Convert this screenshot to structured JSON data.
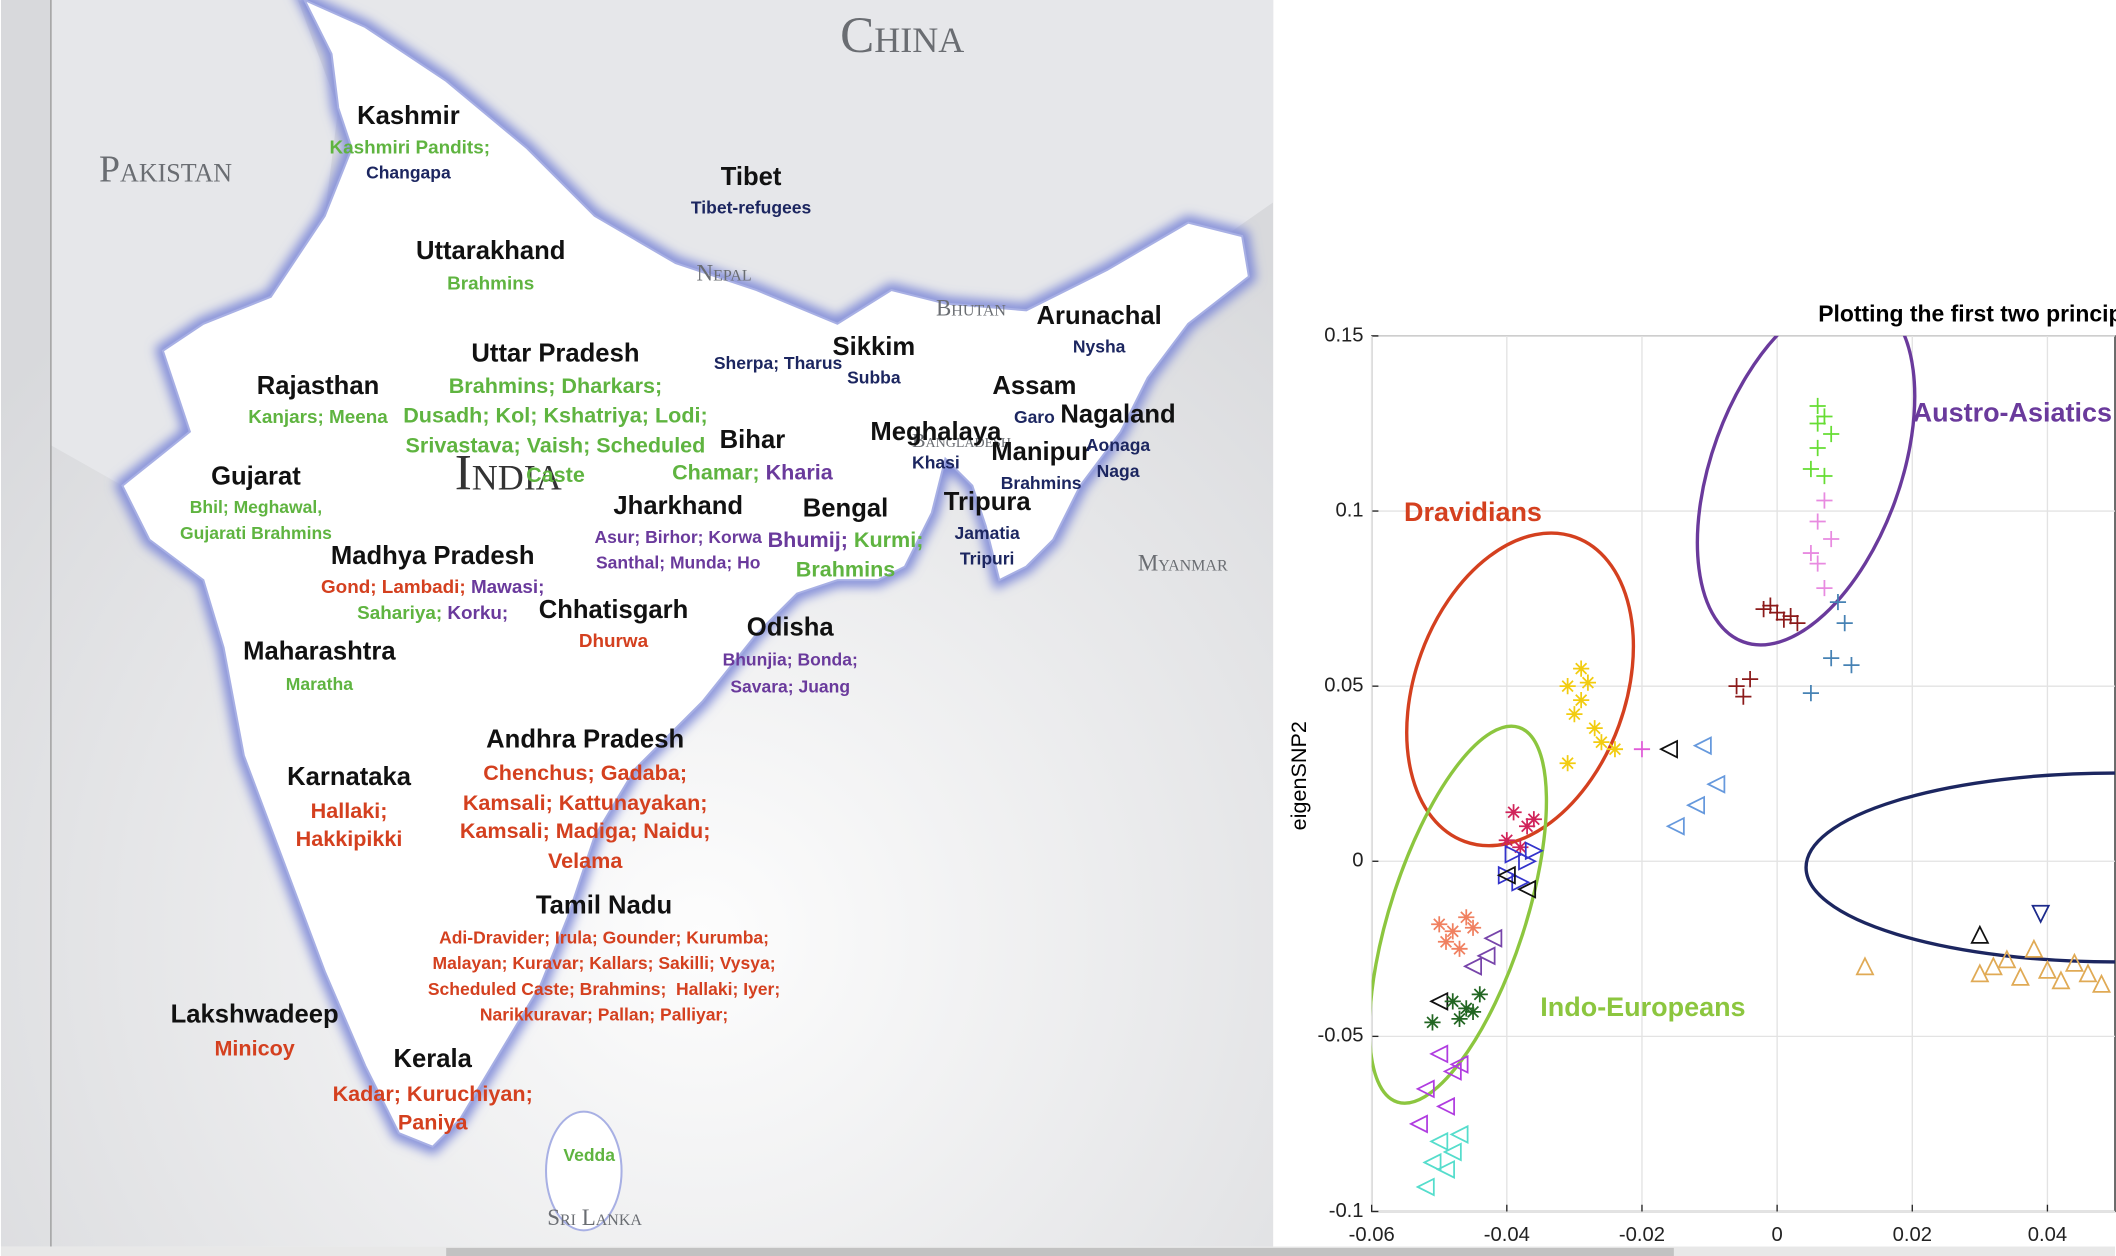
{
  "map": {
    "countries": [
      "Pakistan",
      "China",
      "Nepal",
      "Bhutan",
      "Myanmar",
      "India",
      "Bangladesh",
      "Sri Lanka"
    ],
    "regions": [
      "Kashmir",
      "Tibet",
      "Uttarakhand",
      "Uttar Pradesh",
      "Rajasthan",
      "Sikkim",
      "Arunachal",
      "Assam",
      "Nagaland",
      "Meghalaya",
      "Manipur",
      "Bihar",
      "Gujarat",
      "Jharkhand",
      "Bengal",
      "Tripura",
      "Madhya Pradesh",
      "Chhatisgarh",
      "Odisha",
      "Maharashtra",
      "Andhra Pradesh",
      "Karnataka",
      "Tamil Nadu",
      "Lakshwadeep",
      "Kerala"
    ],
    "groups": [
      {
        "text": "Kashmiri Pandits;",
        "color": "#5fb440"
      },
      {
        "text": "Changapa",
        "color": "#1c2660"
      },
      {
        "text": "Tibet-refugees",
        "color": "#1c2660"
      },
      {
        "text": "Brahmins",
        "color": "#5fb440"
      },
      {
        "text": "Brahmins; Dharkars;",
        "color": "#5fb440"
      },
      {
        "text": "Dusadh; Kol; Kshatriya; Lodi;",
        "color": "#5fb440"
      },
      {
        "text": "Srivastava; Vaish; Scheduled",
        "color": "#5fb440"
      },
      {
        "text": "Caste",
        "color": "#5fb440"
      },
      {
        "text": "Kanjars; Meena",
        "color": "#5fb440"
      },
      {
        "text": "Sherpa; Tharus",
        "color": "#1c2660"
      },
      {
        "text": "Subba",
        "color": "#1c2660"
      },
      {
        "text": "Nysha",
        "color": "#1c2660"
      },
      {
        "text": "Garo",
        "color": "#1c2660"
      },
      {
        "text": "Aonaga",
        "color": "#1c2660"
      },
      {
        "text": "Naga",
        "color": "#1c2660"
      },
      {
        "text": "Khasi",
        "color": "#1c2660"
      },
      {
        "text": "Brahmins",
        "color": "#1c2660"
      },
      {
        "parts": [
          {
            "text": "Chamar; ",
            "color": "#5fb440"
          },
          {
            "text": "Kharia",
            "color": "#6a3a9c"
          }
        ]
      },
      {
        "text": "Bhil; Meghawal,",
        "color": "#5fb440"
      },
      {
        "text": "Gujarati Brahmins",
        "color": "#5fb440"
      },
      {
        "text": "Asur; Birhor; Korwa",
        "color": "#6a3a9c"
      },
      {
        "text": "Santhal; Munda; Ho",
        "color": "#6a3a9c"
      },
      {
        "parts": [
          {
            "text": "Bhumij; ",
            "color": "#6a3a9c"
          },
          {
            "text": "Kurmi;",
            "color": "#5fb440"
          }
        ]
      },
      {
        "text": "Brahmins",
        "color": "#5fb440"
      },
      {
        "text": "Jamatia",
        "color": "#1c2660"
      },
      {
        "text": "Tripuri",
        "color": "#1c2660"
      },
      {
        "parts": [
          {
            "text": "Gond; Lambadi; ",
            "color": "#d4401f"
          },
          {
            "text": "Mawasi;",
            "color": "#6a3a9c"
          }
        ]
      },
      {
        "parts": [
          {
            "text": "Sahariya; ",
            "color": "#5fb440"
          },
          {
            "text": "Korku;",
            "color": "#6a3a9c"
          }
        ]
      },
      {
        "text": "Dhurwa",
        "color": "#d4401f"
      },
      {
        "text": "Bhunjia; Bonda;",
        "color": "#6a3a9c"
      },
      {
        "text": "Savara; Juang",
        "color": "#6a3a9c"
      },
      {
        "text": "Maratha",
        "color": "#5fb440"
      },
      {
        "text": "Chenchus; Gadaba;",
        "color": "#d4401f"
      },
      {
        "text": "Kamsali; Kattunayakan;",
        "color": "#d4401f"
      },
      {
        "text": "Kamsali; Madiga; Naidu;",
        "color": "#d4401f"
      },
      {
        "text": "Velama",
        "color": "#d4401f"
      },
      {
        "text": "Hallaki;",
        "color": "#d4401f"
      },
      {
        "text": "Hakkipikki",
        "color": "#d4401f"
      },
      {
        "text": "Adi-Dravider; Irula; Gounder; Kurumba;",
        "color": "#d4401f"
      },
      {
        "text": "Malayan; Kuravar; Kallars; Sakilli; Vysya;",
        "color": "#d4401f"
      },
      {
        "text": "Scheduled Caste; Brahmins;  Hallaki; Iyer;",
        "color": "#d4401f"
      },
      {
        "text": "Narikkuravar; Pallan; Palliyar;",
        "color": "#d4401f"
      },
      {
        "text": "Minicoy",
        "color": "#d4401f"
      },
      {
        "text": "Kadar; Kuruchiyan;",
        "color": "#d4401f"
      },
      {
        "text": "Paniya",
        "color": "#d4401f"
      },
      {
        "text": "Vedda",
        "color": "#5fb440"
      }
    ]
  },
  "chart_data": {
    "type": "scatter",
    "title": "Plotting the first two princip",
    "y_label": "eigenSNP2",
    "annotations": [
      {
        "text": "Dravidians",
        "color": "#d4401f"
      },
      {
        "text": "Austro-Asiatics",
        "color": "#6a3a9c"
      },
      {
        "text": "Indo-Europeans",
        "color": "#8cc63f"
      }
    ],
    "xlim": [
      -0.06,
      0.05
    ],
    "ylim": [
      -0.1,
      0.15
    ],
    "xticks": [
      -0.06,
      -0.04,
      -0.02,
      0,
      0.02,
      0.04
    ],
    "yticks": [
      -0.1,
      -0.05,
      0,
      0.05,
      0.1,
      0.15
    ],
    "grid": true,
    "series": [
      {
        "color": "#f2cc10",
        "marker": "*",
        "x": [
          -0.031,
          -0.029,
          -0.028,
          -0.03,
          -0.027,
          -0.026,
          -0.031,
          -0.024,
          -0.029
        ],
        "values": [
          0.05,
          0.046,
          0.051,
          0.042,
          0.038,
          0.034,
          0.028,
          0.032,
          0.055
        ]
      },
      {
        "color": "#66dd33",
        "marker": "+",
        "x": [
          0.006,
          0.007,
          0.008,
          0.006,
          0.005,
          0.007,
          0.006
        ],
        "values": [
          0.13,
          0.127,
          0.122,
          0.118,
          0.112,
          0.11,
          0.125
        ]
      },
      {
        "color": "#e88ae0",
        "marker": "+",
        "x": [
          0.007,
          0.006,
          0.008,
          0.005,
          0.006,
          0.007
        ],
        "values": [
          0.103,
          0.097,
          0.092,
          0.088,
          0.085,
          0.078
        ]
      },
      {
        "color": "#8b1a1a",
        "marker": "+",
        "x": [
          -0.001,
          0,
          0.001,
          -0.002,
          0.002,
          0.003,
          -0.006,
          -0.005,
          -0.004
        ],
        "values": [
          0.073,
          0.071,
          0.069,
          0.072,
          0.07,
          0.068,
          0.05,
          0.047,
          0.052
        ]
      },
      {
        "color": "#4682b4",
        "marker": "+",
        "x": [
          0.009,
          0.01,
          0.008,
          0.011,
          0.005
        ],
        "values": [
          0.074,
          0.068,
          0.058,
          0.056,
          0.048
        ]
      },
      {
        "color": "#e05cd8",
        "marker": "+",
        "x": [
          -0.02
        ],
        "values": [
          0.032
        ]
      },
      {
        "color": "#d0245a",
        "marker": "*",
        "x": [
          -0.039,
          -0.037,
          -0.04,
          -0.038,
          -0.036
        ],
        "values": [
          0.014,
          0.01,
          0.006,
          0.004,
          0.012
        ]
      },
      {
        "color": "#f08060",
        "marker": "*",
        "x": [
          -0.05,
          -0.048,
          -0.046,
          -0.049,
          -0.045,
          -0.047
        ],
        "values": [
          -0.018,
          -0.02,
          -0.016,
          -0.023,
          -0.019,
          -0.025
        ]
      },
      {
        "color": "#3333cc",
        "marker": ">",
        "x": [
          -0.039,
          -0.037,
          -0.04,
          -0.036,
          -0.038
        ],
        "values": [
          0.002,
          0.0,
          -0.004,
          0.003,
          -0.006
        ]
      },
      {
        "color": "#111111",
        "marker": "<",
        "x": [
          -0.04,
          -0.037,
          -0.05,
          -0.016
        ],
        "values": [
          -0.004,
          -0.008,
          -0.04,
          0.032
        ]
      },
      {
        "color": "#7744aa",
        "marker": "<",
        "x": [
          -0.043,
          -0.045,
          -0.042
        ],
        "values": [
          -0.027,
          -0.03,
          -0.022
        ]
      },
      {
        "color": "#226622",
        "marker": "*",
        "x": [
          -0.048,
          -0.046,
          -0.044,
          -0.047,
          -0.045,
          -0.051
        ],
        "values": [
          -0.04,
          -0.042,
          -0.038,
          -0.045,
          -0.043,
          -0.046
        ]
      },
      {
        "color": "#b03ce0",
        "marker": "<",
        "x": [
          -0.05,
          -0.048,
          -0.052,
          -0.049,
          -0.047,
          -0.053
        ],
        "values": [
          -0.055,
          -0.06,
          -0.065,
          -0.07,
          -0.058,
          -0.075
        ]
      },
      {
        "color": "#55ddcc",
        "marker": "<",
        "x": [
          -0.05,
          -0.048,
          -0.051,
          -0.049,
          -0.052,
          -0.047
        ],
        "values": [
          -0.08,
          -0.083,
          -0.086,
          -0.088,
          -0.093,
          -0.078
        ]
      },
      {
        "color": "#6699dd",
        "marker": "<",
        "x": [
          -0.011,
          -0.009,
          -0.015,
          -0.012
        ],
        "values": [
          0.033,
          0.022,
          0.01,
          0.016
        ]
      },
      {
        "color": "#e0aa55",
        "marker": "^",
        "x": [
          0.013,
          0.03,
          0.032,
          0.034,
          0.036,
          0.038,
          0.04,
          0.042,
          0.044,
          0.046,
          0.048
        ],
        "values": [
          -0.03,
          -0.032,
          -0.03,
          -0.028,
          -0.033,
          -0.025,
          -0.031,
          -0.034,
          -0.029,
          -0.032,
          -0.035
        ]
      },
      {
        "color": "#1c2a8c",
        "marker": "v",
        "x": [
          0.039
        ],
        "values": [
          -0.015
        ]
      },
      {
        "color": "#111111",
        "marker": "^",
        "x": [
          0.03
        ],
        "values": [
          -0.021
        ]
      }
    ]
  }
}
